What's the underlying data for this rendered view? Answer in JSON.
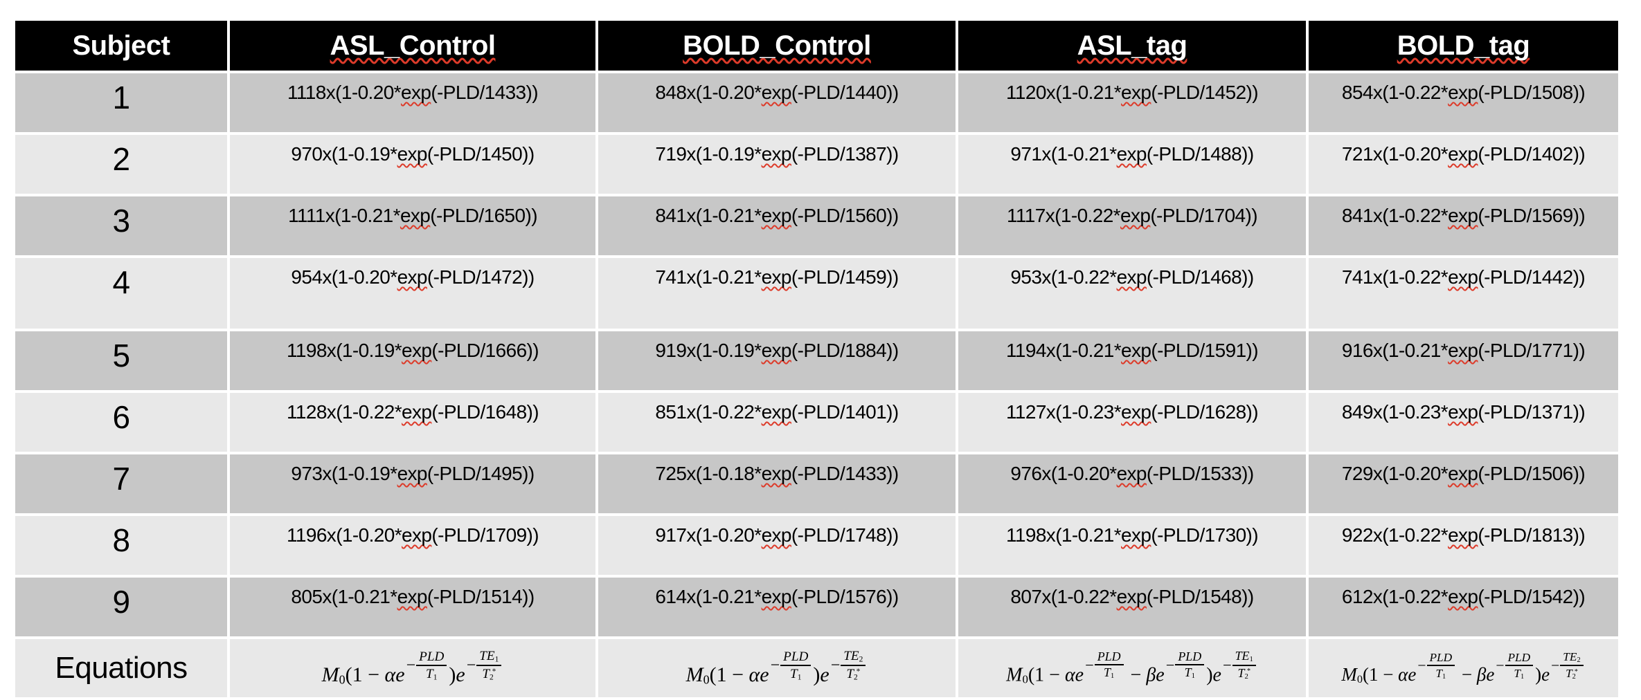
{
  "colors": {
    "background": "#ffffff",
    "header_bg": "#000000",
    "header_text": "#ffffff",
    "row_dark": "#c7c7c7",
    "row_light": "#e8e8e8",
    "text": "#000000",
    "squiggle": "#dd3b2a"
  },
  "table": {
    "headers": [
      {
        "label": "Subject",
        "misspelled": false
      },
      {
        "label": "ASL_Control",
        "misspelled": true
      },
      {
        "label": "BOLD_Control",
        "misspelled": true
      },
      {
        "label": "ASL_tag",
        "misspelled": true
      },
      {
        "label": "BOLD_tag",
        "misspelled": true
      }
    ],
    "rows": [
      {
        "subject": "1",
        "cells": [
          "1118x(1-0.20*exp(-PLD/1433))",
          "848x(1-0.20*exp(-PLD/1440))",
          "1120x(1-0.21*exp(-PLD/1452))",
          "854x(1-0.22*exp(-PLD/1508))"
        ]
      },
      {
        "subject": "2",
        "cells": [
          "970x(1-0.19*exp(-PLD/1450))",
          "719x(1-0.19*exp(-PLD/1387))",
          "971x(1-0.21*exp(-PLD/1488))",
          "721x(1-0.20*exp(-PLD/1402))"
        ]
      },
      {
        "subject": "3",
        "cells": [
          "1111x(1-0.21*exp(-PLD/1650))",
          "841x(1-0.21*exp(-PLD/1560))",
          "1117x(1-0.22*exp(-PLD/1704))",
          "841x(1-0.22*exp(-PLD/1569))"
        ]
      },
      {
        "subject": "4",
        "cells": [
          "954x(1-0.20*exp(-PLD/1472))",
          "741x(1-0.21*exp(-PLD/1459))",
          "953x(1-0.22*exp(-PLD/1468))",
          "741x(1-0.22*exp(-PLD/1442))"
        ]
      },
      {
        "subject": "5",
        "cells": [
          "1198x(1-0.19*exp(-PLD/1666))",
          "919x(1-0.19*exp(-PLD/1884))",
          "1194x(1-0.21*exp(-PLD/1591))",
          "916x(1-0.21*exp(-PLD/1771))"
        ]
      },
      {
        "subject": "6",
        "cells": [
          "1128x(1-0.22*exp(-PLD/1648))",
          "851x(1-0.22*exp(-PLD/1401))",
          "1127x(1-0.23*exp(-PLD/1628))",
          "849x(1-0.23*exp(-PLD/1371))"
        ]
      },
      {
        "subject": "7",
        "cells": [
          "973x(1-0.19*exp(-PLD/1495))",
          "725x(1-0.18*exp(-PLD/1433))",
          "976x(1-0.20*exp(-PLD/1533))",
          "729x(1-0.20*exp(-PLD/1506))"
        ]
      },
      {
        "subject": "8",
        "cells": [
          "1196x(1-0.20*exp(-PLD/1709))",
          "917x(1-0.20*exp(-PLD/1748))",
          "1198x(1-0.21*exp(-PLD/1730))",
          "922x(1-0.22*exp(-PLD/1813))"
        ]
      },
      {
        "subject": "9",
        "cells": [
          "805x(1-0.21*exp(-PLD/1514))",
          "614x(1-0.21*exp(-PLD/1576))",
          "807x(1-0.22*exp(-PLD/1548))",
          "612x(1-0.22*exp(-PLD/1542))"
        ]
      }
    ],
    "equations_row": {
      "label": "Equations",
      "cells": [
        {
          "tokens": [
            {
              "t": "i",
              "v": "M"
            },
            {
              "t": "sub",
              "v": "0"
            },
            {
              "t": "p",
              "v": "(1 − "
            },
            {
              "t": "i",
              "v": "αe"
            },
            {
              "t": "frac",
              "minus": "−",
              "num": [
                {
                  "t": "i",
                  "v": "PLD"
                }
              ],
              "den": [
                {
                  "t": "i",
                  "v": "T"
                },
                {
                  "t": "sub",
                  "v": "1"
                }
              ]
            },
            {
              "t": "p",
              "v": ")"
            },
            {
              "t": "i",
              "v": "e"
            },
            {
              "t": "frac",
              "minus": "−",
              "num": [
                {
                  "t": "i",
                  "v": "TE"
                },
                {
                  "t": "sub",
                  "v": "1"
                }
              ],
              "den": [
                {
                  "t": "i",
                  "v": "T"
                },
                {
                  "t": "sub",
                  "v": "2"
                },
                {
                  "t": "sup",
                  "v": "*"
                }
              ]
            }
          ]
        },
        {
          "tokens": [
            {
              "t": "i",
              "v": "M"
            },
            {
              "t": "sub",
              "v": "0"
            },
            {
              "t": "p",
              "v": "(1 − "
            },
            {
              "t": "i",
              "v": "αe"
            },
            {
              "t": "frac",
              "minus": "−",
              "num": [
                {
                  "t": "i",
                  "v": "PLD"
                }
              ],
              "den": [
                {
                  "t": "i",
                  "v": "T"
                },
                {
                  "t": "sub",
                  "v": "1"
                }
              ]
            },
            {
              "t": "p",
              "v": ")"
            },
            {
              "t": "i",
              "v": "e"
            },
            {
              "t": "frac",
              "minus": "−",
              "num": [
                {
                  "t": "i",
                  "v": "TE"
                },
                {
                  "t": "sub",
                  "v": "2"
                }
              ],
              "den": [
                {
                  "t": "i",
                  "v": "T"
                },
                {
                  "t": "sub",
                  "v": "2"
                },
                {
                  "t": "sup",
                  "v": "*"
                }
              ]
            }
          ]
        },
        {
          "tokens": [
            {
              "t": "i",
              "v": "M"
            },
            {
              "t": "sub",
              "v": "0"
            },
            {
              "t": "p",
              "v": "(1 − "
            },
            {
              "t": "i",
              "v": "αe"
            },
            {
              "t": "frac",
              "minus": "−",
              "num": [
                {
                  "t": "i",
                  "v": "PLD"
                }
              ],
              "den": [
                {
                  "t": "i",
                  "v": "T"
                },
                {
                  "t": "sub",
                  "v": "1"
                }
              ]
            },
            {
              "t": "p",
              "v": " − "
            },
            {
              "t": "i",
              "v": "βe"
            },
            {
              "t": "frac",
              "minus": "−",
              "num": [
                {
                  "t": "i",
                  "v": "PLD"
                }
              ],
              "den": [
                {
                  "t": "i",
                  "v": "T"
                },
                {
                  "t": "sub",
                  "v": "1"
                }
              ]
            },
            {
              "t": "p",
              "v": ")"
            },
            {
              "t": "i",
              "v": "e"
            },
            {
              "t": "frac",
              "minus": "−",
              "num": [
                {
                  "t": "i",
                  "v": "TE"
                },
                {
                  "t": "sub",
                  "v": "1"
                }
              ],
              "den": [
                {
                  "t": "i",
                  "v": "T"
                },
                {
                  "t": "sub",
                  "v": "2"
                },
                {
                  "t": "sup",
                  "v": "*"
                }
              ]
            }
          ]
        },
        {
          "tokens": [
            {
              "t": "i",
              "v": "M"
            },
            {
              "t": "sub",
              "v": "0"
            },
            {
              "t": "p",
              "v": "(1 − "
            },
            {
              "t": "i",
              "v": "αe"
            },
            {
              "t": "frac",
              "minus": "−",
              "num": [
                {
                  "t": "i",
                  "v": "PLD"
                }
              ],
              "den": [
                {
                  "t": "i",
                  "v": "T"
                },
                {
                  "t": "sub",
                  "v": "1"
                }
              ]
            },
            {
              "t": "p",
              "v": " − "
            },
            {
              "t": "i",
              "v": "βe"
            },
            {
              "t": "frac",
              "minus": "−",
              "num": [
                {
                  "t": "i",
                  "v": "PLD"
                }
              ],
              "den": [
                {
                  "t": "i",
                  "v": "T"
                },
                {
                  "t": "sub",
                  "v": "1"
                }
              ]
            },
            {
              "t": "p",
              "v": ")"
            },
            {
              "t": "i",
              "v": "e"
            },
            {
              "t": "frac",
              "minus": "−",
              "num": [
                {
                  "t": "i",
                  "v": "TE"
                },
                {
                  "t": "sub",
                  "v": "2"
                }
              ],
              "den": [
                {
                  "t": "i",
                  "v": "T"
                },
                {
                  "t": "sub",
                  "v": "2"
                },
                {
                  "t": "sup",
                  "v": "*"
                }
              ]
            }
          ]
        }
      ]
    }
  }
}
